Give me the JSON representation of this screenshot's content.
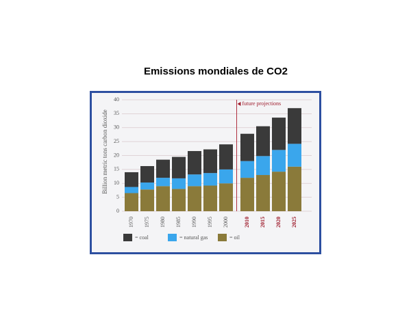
{
  "chart_data": {
    "type": "stacked_bar",
    "title": "Emissions mondiales de CO2",
    "y_label": "Billion metric tons carbon dioxide",
    "annotation": "future projections",
    "categories": [
      "1970",
      "1975",
      "1980",
      "1985",
      "1990",
      "1995",
      "2000",
      "2010",
      "2015",
      "2020",
      "2025"
    ],
    "series": [
      {
        "name": "= oil",
        "color": "#8a7a3a",
        "values": [
          6.5,
          7.8,
          9,
          8,
          9,
          9.2,
          10,
          12,
          13,
          14.2,
          16
        ]
      },
      {
        "name": "= natural gas",
        "color": "#3aa6ec",
        "values": [
          2.2,
          2.5,
          3,
          3.8,
          4.2,
          4.5,
          5,
          6,
          6.8,
          7.8,
          8.2
        ]
      },
      {
        "name": "= coal",
        "color": "#3a3a3a",
        "values": [
          5.3,
          5.9,
          6.5,
          7.7,
          8.4,
          8.5,
          9,
          9.8,
          10.7,
          11.6,
          12.8
        ]
      }
    ],
    "ylim": [
      0,
      40
    ],
    "yticks": [
      0,
      5,
      10,
      15,
      20,
      25,
      30,
      35,
      40
    ],
    "grid": true
  }
}
